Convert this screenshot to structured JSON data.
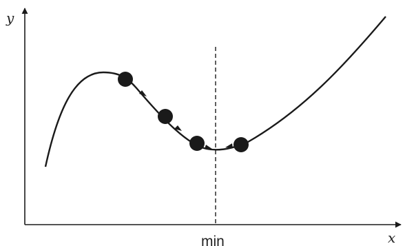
{
  "axes": {
    "x_label": "x",
    "y_label": "y"
  },
  "marker_label": "min",
  "colors": {
    "stroke": "#1a1a1a",
    "ball": "#1a1a1a"
  },
  "balls": [
    {
      "name": "ball-1"
    },
    {
      "name": "ball-2"
    },
    {
      "name": "ball-3"
    },
    {
      "name": "ball-4"
    }
  ]
}
